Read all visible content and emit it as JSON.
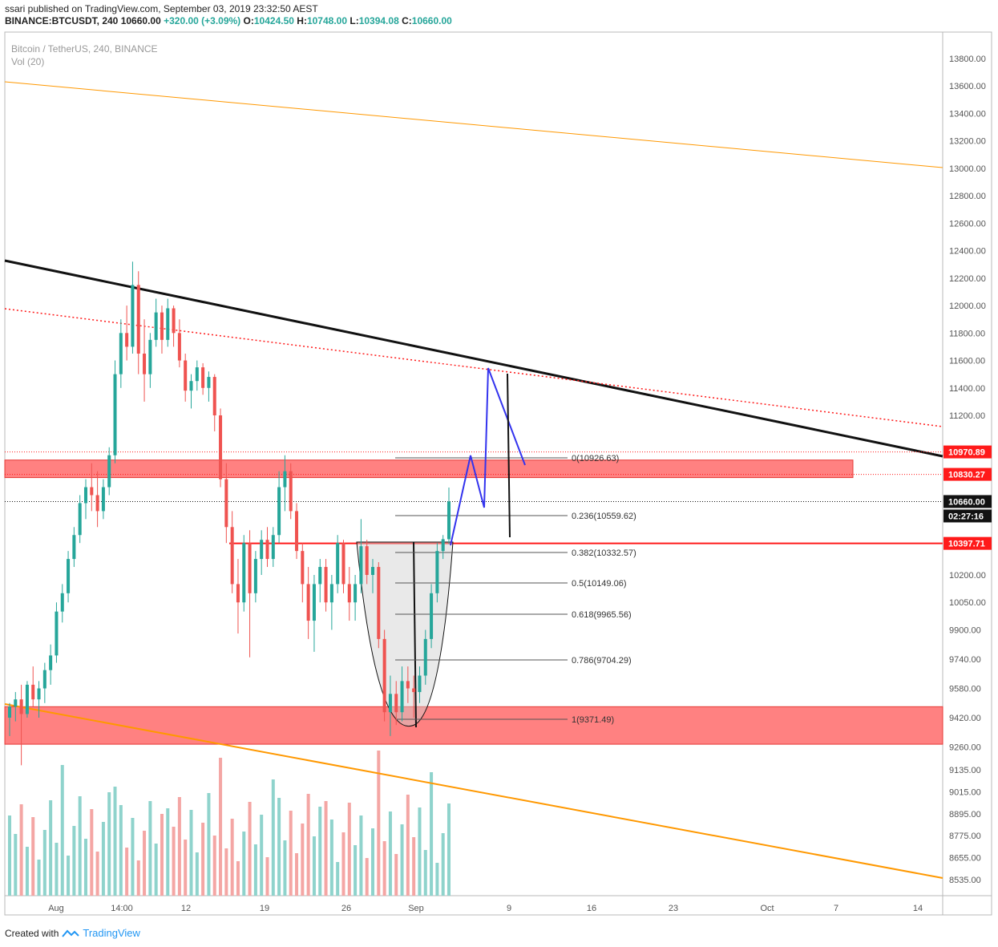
{
  "header": {
    "publisher": "ssari published on TradingView.com, September 03, 2019 23:32:50 AEST",
    "symbol": "BINANCE:BTCUSDT, 240",
    "price": "10660.00",
    "change": "+320.00 (+3.09%)",
    "o_label": "O:",
    "o_value": "10424.50",
    "h_label": "H:",
    "h_value": "10748.00",
    "l_label": "L:",
    "l_value": "10394.08",
    "c_label": "C:",
    "c_value": "10660.00"
  },
  "pane": {
    "title": "Bitcoin / TetherUS, 240, BINANCE",
    "vol": "Vol (20)"
  },
  "footer": {
    "created": "Created with",
    "brand": "TradingView"
  },
  "colors": {
    "up": "#26a69a",
    "down": "#ef5350",
    "zone": "#ff6b6b",
    "orange": "#ff9800",
    "blue": "#3333ee",
    "red_line": "#ff1a1a"
  },
  "chart_data": {
    "type": "candlestick",
    "ylim": [
      8470,
      13990
    ],
    "y_ticks": [
      "13800.00",
      "13600.00",
      "13400.00",
      "13200.00",
      "13000.00",
      "12800.00",
      "12600.00",
      "12400.00",
      "12200.00",
      "12000.00",
      "11800.00",
      "11600.00",
      "11400.00",
      "11200.00",
      "10200.00",
      "10050.00",
      "9900.00",
      "9740.00",
      "9580.00",
      "9420.00",
      "9260.00",
      "9135.00",
      "9015.00",
      "8895.00",
      "8775.00",
      "8655.00",
      "8535.00"
    ],
    "x_ticks": [
      "Aug",
      "14:00",
      "12",
      "19",
      "26",
      "Sep",
      "9",
      "16",
      "23",
      "Oct",
      "7",
      "14"
    ],
    "price_labels": [
      {
        "text": "10970.89",
        "value": 10970.89,
        "style": "red"
      },
      {
        "text": "10830.27",
        "value": 10830.27,
        "style": "red"
      },
      {
        "text": "10660.00",
        "value": 10660.0,
        "style": "black"
      },
      {
        "text": "02:27:16",
        "value": 10660.0,
        "style": "black"
      },
      {
        "text": "10397.71",
        "value": 10397.71,
        "style": "red"
      }
    ],
    "fib_levels": [
      {
        "label": "0(10926.63)"
      },
      {
        "label": "0.236(10559.62)"
      },
      {
        "label": "0.382(10332.57)"
      },
      {
        "label": "0.5(10149.06)"
      },
      {
        "label": "0.618(9965.56)"
      },
      {
        "label": "0.786(9704.29)"
      },
      {
        "label": "1(9371.49)"
      }
    ],
    "candles": [
      {
        "o": 9420,
        "h": 9500,
        "l": 9320,
        "c": 9480
      },
      {
        "o": 9480,
        "h": 9560,
        "l": 9400,
        "c": 9520
      },
      {
        "o": 9520,
        "h": 9600,
        "l": 9160,
        "c": 9440
      },
      {
        "o": 9440,
        "h": 9620,
        "l": 9420,
        "c": 9600
      },
      {
        "o": 9600,
        "h": 9700,
        "l": 9480,
        "c": 9520
      },
      {
        "o": 9520,
        "h": 9620,
        "l": 9420,
        "c": 9580
      },
      {
        "o": 9580,
        "h": 9720,
        "l": 9500,
        "c": 9680
      },
      {
        "o": 9680,
        "h": 9820,
        "l": 9600,
        "c": 9760
      },
      {
        "o": 9760,
        "h": 10050,
        "l": 9720,
        "c": 10000
      },
      {
        "o": 10000,
        "h": 10150,
        "l": 9940,
        "c": 10100
      },
      {
        "o": 10100,
        "h": 10350,
        "l": 10050,
        "c": 10300
      },
      {
        "o": 10300,
        "h": 10500,
        "l": 10250,
        "c": 10450
      },
      {
        "o": 10450,
        "h": 10700,
        "l": 10400,
        "c": 10650
      },
      {
        "o": 10650,
        "h": 10800,
        "l": 10550,
        "c": 10750
      },
      {
        "o": 10750,
        "h": 10900,
        "l": 10600,
        "c": 10700
      },
      {
        "o": 10700,
        "h": 10850,
        "l": 10500,
        "c": 10600
      },
      {
        "o": 10600,
        "h": 10800,
        "l": 10550,
        "c": 10750
      },
      {
        "o": 10750,
        "h": 11000,
        "l": 10700,
        "c": 10950
      },
      {
        "o": 10950,
        "h": 11600,
        "l": 10900,
        "c": 11500
      },
      {
        "o": 11500,
        "h": 11900,
        "l": 11400,
        "c": 11800
      },
      {
        "o": 11800,
        "h": 12000,
        "l": 11600,
        "c": 11700
      },
      {
        "o": 11700,
        "h": 12320,
        "l": 11650,
        "c": 12150
      },
      {
        "o": 12150,
        "h": 12250,
        "l": 11500,
        "c": 11650
      },
      {
        "o": 11650,
        "h": 11900,
        "l": 11300,
        "c": 11500
      },
      {
        "o": 11500,
        "h": 11800,
        "l": 11400,
        "c": 11750
      },
      {
        "o": 11750,
        "h": 12050,
        "l": 11700,
        "c": 11950
      },
      {
        "o": 11950,
        "h": 12000,
        "l": 11650,
        "c": 11750
      },
      {
        "o": 11750,
        "h": 12050,
        "l": 11700,
        "c": 11980
      },
      {
        "o": 11980,
        "h": 12000,
        "l": 11700,
        "c": 11800
      },
      {
        "o": 11800,
        "h": 11900,
        "l": 11550,
        "c": 11600
      },
      {
        "o": 11600,
        "h": 11650,
        "l": 11300,
        "c": 11380
      },
      {
        "o": 11380,
        "h": 11500,
        "l": 11250,
        "c": 11450
      },
      {
        "o": 11450,
        "h": 11600,
        "l": 11380,
        "c": 11550
      },
      {
        "o": 11550,
        "h": 11580,
        "l": 11350,
        "c": 11400
      },
      {
        "o": 11400,
        "h": 11520,
        "l": 11300,
        "c": 11480
      },
      {
        "o": 11480,
        "h": 11500,
        "l": 11100,
        "c": 11200
      },
      {
        "o": 11200,
        "h": 11250,
        "l": 10750,
        "c": 10800
      },
      {
        "o": 10800,
        "h": 10900,
        "l": 10400,
        "c": 10500
      },
      {
        "o": 10500,
        "h": 10600,
        "l": 10100,
        "c": 10150
      },
      {
        "o": 10150,
        "h": 10300,
        "l": 9880,
        "c": 10050
      },
      {
        "o": 10050,
        "h": 10450,
        "l": 10000,
        "c": 10400
      },
      {
        "o": 10400,
        "h": 10480,
        "l": 9750,
        "c": 10100
      },
      {
        "o": 10100,
        "h": 10350,
        "l": 10050,
        "c": 10300
      },
      {
        "o": 10300,
        "h": 10480,
        "l": 10200,
        "c": 10420
      },
      {
        "o": 10420,
        "h": 10500,
        "l": 10250,
        "c": 10300
      },
      {
        "o": 10300,
        "h": 10500,
        "l": 10250,
        "c": 10450
      },
      {
        "o": 10450,
        "h": 10850,
        "l": 10400,
        "c": 10750
      },
      {
        "o": 10750,
        "h": 10950,
        "l": 10600,
        "c": 10850
      },
      {
        "o": 10850,
        "h": 10900,
        "l": 10550,
        "c": 10600
      },
      {
        "o": 10600,
        "h": 10650,
        "l": 10300,
        "c": 10350
      },
      {
        "o": 10350,
        "h": 10400,
        "l": 10050,
        "c": 10150
      },
      {
        "o": 10150,
        "h": 10250,
        "l": 9850,
        "c": 9950
      },
      {
        "o": 9950,
        "h": 10200,
        "l": 9780,
        "c": 10150
      },
      {
        "o": 10150,
        "h": 10300,
        "l": 10050,
        "c": 10250
      },
      {
        "o": 10250,
        "h": 10300,
        "l": 10000,
        "c": 10050
      },
      {
        "o": 10050,
        "h": 10200,
        "l": 9900,
        "c": 10150
      },
      {
        "o": 10150,
        "h": 10450,
        "l": 10100,
        "c": 10400
      },
      {
        "o": 10400,
        "h": 10420,
        "l": 10100,
        "c": 10150
      },
      {
        "o": 10150,
        "h": 10250,
        "l": 9950,
        "c": 10050
      },
      {
        "o": 10050,
        "h": 10200,
        "l": 9950,
        "c": 10150
      },
      {
        "o": 10150,
        "h": 10550,
        "l": 10100,
        "c": 10380
      },
      {
        "o": 10380,
        "h": 10420,
        "l": 10150,
        "c": 10200
      },
      {
        "o": 10200,
        "h": 10300,
        "l": 10100,
        "c": 10250
      },
      {
        "o": 10250,
        "h": 10280,
        "l": 9800,
        "c": 9850
      },
      {
        "o": 9850,
        "h": 9900,
        "l": 9400,
        "c": 9450
      },
      {
        "o": 9450,
        "h": 9650,
        "l": 9320,
        "c": 9550
      },
      {
        "o": 9550,
        "h": 9620,
        "l": 9380,
        "c": 9450
      },
      {
        "o": 9450,
        "h": 9700,
        "l": 9400,
        "c": 9620
      },
      {
        "o": 9620,
        "h": 9700,
        "l": 9500,
        "c": 9580
      },
      {
        "o": 9580,
        "h": 9650,
        "l": 9420,
        "c": 9560
      },
      {
        "o": 9560,
        "h": 9700,
        "l": 9500,
        "c": 9650
      },
      {
        "o": 9650,
        "h": 9900,
        "l": 9600,
        "c": 9850
      },
      {
        "o": 9850,
        "h": 10150,
        "l": 9800,
        "c": 10100
      },
      {
        "o": 10100,
        "h": 10400,
        "l": 10050,
        "c": 10350
      },
      {
        "o": 10350,
        "h": 10450,
        "l": 10300,
        "c": 10424
      },
      {
        "o": 10424,
        "h": 10748,
        "l": 10394,
        "c": 10660
      }
    ]
  }
}
